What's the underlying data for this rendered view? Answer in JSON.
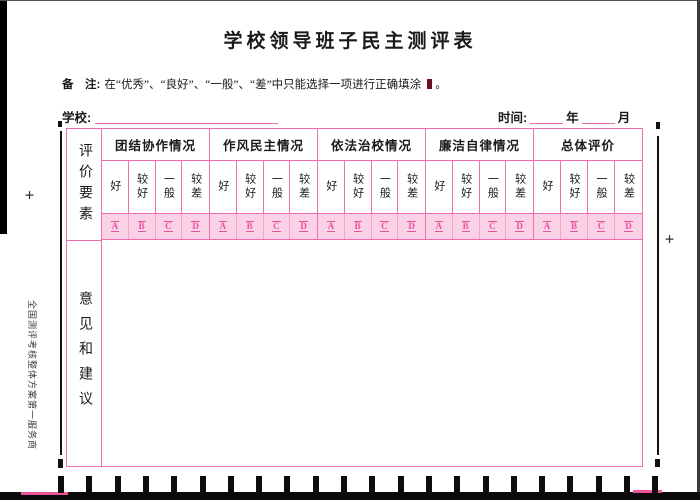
{
  "page": {
    "title": "学校领导班子民主测评表",
    "note": {
      "label": "备　注:",
      "text": "在“优秀”、“良好”、“一般”、“差”中只能选择一项进行正确填涂",
      "suffix": "。"
    },
    "school_label": "学校:",
    "time": {
      "label": "时间:",
      "year_label": "年",
      "month_label": "月"
    },
    "side_text": "全国测评考核整体方案第一服务商",
    "plus_mark": "+"
  },
  "table": {
    "left_header_top": "评价要素",
    "left_header_bottom": "意见和建议",
    "groups": [
      {
        "label": "团结协作情况",
        "subs": [
          "好",
          "较好",
          "一般",
          "较差"
        ],
        "options": [
          "A",
          "B",
          "C",
          "D"
        ]
      },
      {
        "label": "作风民主情况",
        "subs": [
          "好",
          "较好",
          "一般",
          "较差"
        ],
        "options": [
          "A",
          "B",
          "C",
          "D"
        ]
      },
      {
        "label": "依法治校情况",
        "subs": [
          "好",
          "较好",
          "一般",
          "较差"
        ],
        "options": [
          "A",
          "B",
          "C",
          "D"
        ]
      },
      {
        "label": "廉洁自律情况",
        "subs": [
          "好",
          "较好",
          "一般",
          "较差"
        ],
        "options": [
          "A",
          "B",
          "C",
          "D"
        ]
      },
      {
        "label": "总体评价",
        "subs": [
          "好",
          "较好",
          "一般",
          "较差"
        ],
        "options": [
          "A",
          "B",
          "C",
          "D"
        ]
      }
    ]
  },
  "colors": {
    "table_pink": "#f06eb0",
    "bubble_row_pink": "#fbd2e5",
    "option_letter_pink": "#e8529f",
    "fill_mark_maroon": "#66121f"
  },
  "decorations": {
    "bottom_timing_marks": 22
  }
}
